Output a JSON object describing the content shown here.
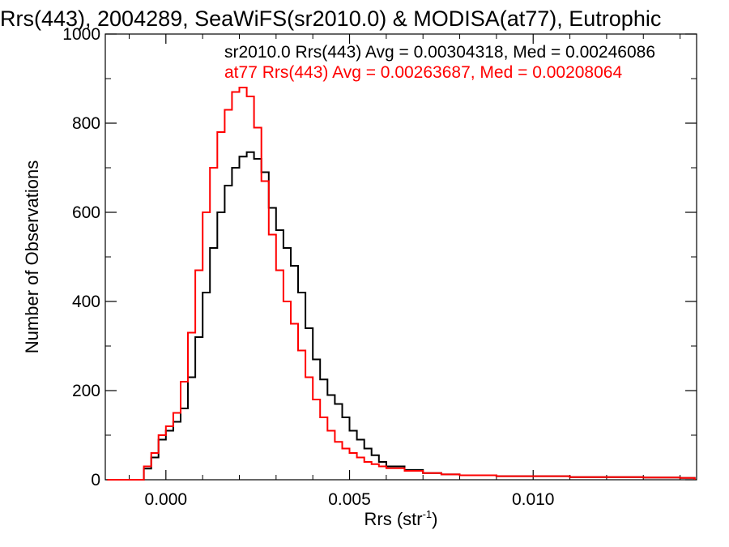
{
  "chart_data": {
    "type": "histogram-step",
    "title": "Rrs(443), 2004289, SeaWiFS(sr2010.0) & MODISA(at77), Eutrophic",
    "xlabel_main": "Rrs (str",
    "xlabel_sup": "-1",
    "xlabel_close": ")",
    "ylabel": "Number of Observations",
    "xlim": [
      -0.00165,
      0.01445
    ],
    "ylim": [
      0,
      1000
    ],
    "xticks": [
      0.0,
      0.005,
      0.01
    ],
    "xtick_labels": [
      "0.000",
      "0.005",
      "0.010"
    ],
    "yticks": [
      0,
      200,
      400,
      600,
      800,
      1000
    ],
    "ytick_labels": [
      "0",
      "200",
      "400",
      "600",
      "800",
      "1000"
    ],
    "grid": false,
    "legend_position": "top-right",
    "series": [
      {
        "name": "sr2010.0 Rrs(443) Avg = 0.00304318, Med = 0.00246086",
        "color": "#000000",
        "x": [
          -0.0016,
          -0.0008,
          -0.0006,
          -0.0004,
          -0.0002,
          0.0,
          0.0002,
          0.0004,
          0.0006,
          0.0008,
          0.001,
          0.0012,
          0.0014,
          0.0016,
          0.0018,
          0.002,
          0.0022,
          0.0024,
          0.0026,
          0.0028,
          0.003,
          0.0032,
          0.0034,
          0.0036,
          0.0038,
          0.004,
          0.0042,
          0.0044,
          0.0046,
          0.0048,
          0.005,
          0.0052,
          0.0054,
          0.0056,
          0.0058,
          0.006,
          0.0065,
          0.007,
          0.0075,
          0.008,
          0.009,
          0.01,
          0.011,
          0.012,
          0.013,
          0.014,
          0.0144
        ],
        "y": [
          0,
          0,
          25,
          50,
          90,
          110,
          130,
          160,
          230,
          320,
          420,
          520,
          600,
          660,
          700,
          725,
          735,
          720,
          690,
          610,
          560,
          520,
          480,
          420,
          340,
          270,
          225,
          190,
          170,
          140,
          110,
          90,
          70,
          55,
          40,
          30,
          22,
          15,
          12,
          10,
          8,
          8,
          6,
          6,
          5,
          4,
          0
        ]
      },
      {
        "name": "at77 Rrs(443) Avg = 0.00263687, Med = 0.00208064",
        "color": "#ff0000",
        "x": [
          -0.0016,
          -0.0008,
          -0.0006,
          -0.0004,
          -0.0002,
          0.0,
          0.0002,
          0.0004,
          0.0006,
          0.0008,
          0.001,
          0.0012,
          0.0014,
          0.0016,
          0.0018,
          0.002,
          0.0022,
          0.0024,
          0.0026,
          0.0028,
          0.003,
          0.0032,
          0.0034,
          0.0036,
          0.0038,
          0.004,
          0.0042,
          0.0044,
          0.0046,
          0.0048,
          0.005,
          0.0052,
          0.0054,
          0.0056,
          0.0058,
          0.006,
          0.0065,
          0.007,
          0.0075,
          0.008,
          0.009,
          0.01,
          0.011,
          0.012,
          0.013,
          0.014,
          0.0144
        ],
        "y": [
          0,
          0,
          30,
          60,
          100,
          120,
          150,
          220,
          330,
          470,
          600,
          700,
          780,
          830,
          870,
          880,
          860,
          790,
          670,
          550,
          470,
          400,
          350,
          290,
          230,
          180,
          140,
          110,
          85,
          70,
          60,
          50,
          40,
          35,
          30,
          26,
          20,
          15,
          12,
          10,
          8,
          8,
          6,
          6,
          5,
          4,
          0
        ]
      }
    ]
  }
}
